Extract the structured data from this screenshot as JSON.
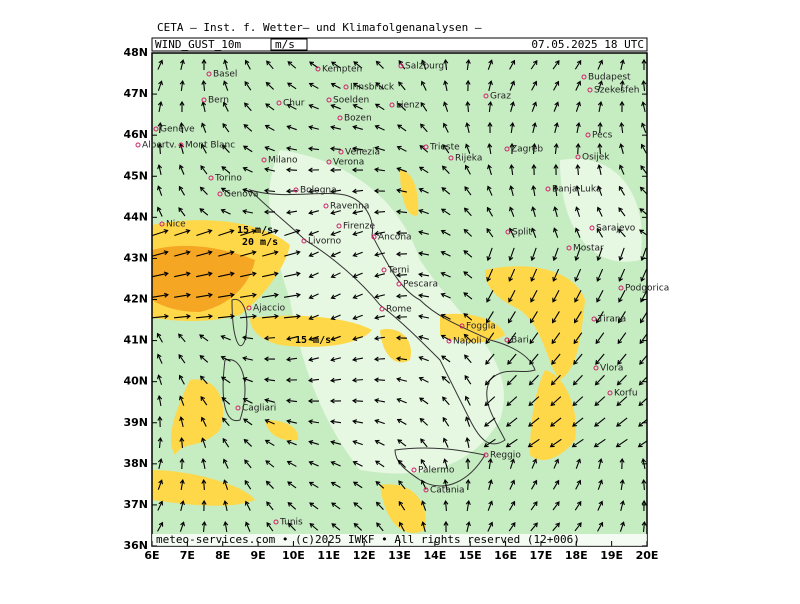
{
  "header": {
    "institute": "CETA – Inst. f. Wetter– und Klimafolgenanalysen –",
    "title": "WIND_GUST_10m",
    "unit": "m/s",
    "datetime": "07.05.2025 18 UTC"
  },
  "axes": {
    "lat_labels": [
      "48N",
      "47N",
      "46N",
      "45N",
      "44N",
      "43N",
      "42N",
      "41N",
      "40N",
      "39N",
      "38N",
      "37N",
      "36N"
    ],
    "lon_labels": [
      "6E",
      "7E",
      "8E",
      "9E",
      "10E",
      "11E",
      "12E",
      "13E",
      "14E",
      "15E",
      "16E",
      "17E",
      "18E",
      "19E",
      "20E"
    ]
  },
  "cities": [
    "Kempten",
    "Salzburg",
    "Basel",
    "Bern",
    "Chur",
    "Innsbruck",
    "Soelden",
    "Lienz",
    "Graz",
    "Budapest",
    "Szekesfeh",
    "Bozen",
    "Geneve",
    "Albertv.",
    "Mont Blanc",
    "Venezia",
    "Trieste",
    "Zagreb",
    "Pecs",
    "Osijek",
    "Milano",
    "Verona",
    "Rijeka",
    "Torino",
    "Genova",
    "Bologna",
    "Banja Luka",
    "Ravenna",
    "Nice",
    "Firenze",
    "Split",
    "Sarajevo",
    "Ancona",
    "Livorno",
    "Mostar",
    "Terni",
    "Pescara",
    "Podgorica",
    "Ajaccio",
    "Rome",
    "Tirana",
    "Foggia",
    "Napoli",
    "Bari",
    "Vlora",
    "Korfu",
    "Cagliari",
    "Palermo",
    "Reggio",
    "Catania",
    "Tunis"
  ],
  "contour_labels": [
    "15 m/s",
    "20 m/s",
    "15 m/s"
  ],
  "footer": "meteo-services.com • (c)2025 IWKF • All rights reserved (12+006)"
}
